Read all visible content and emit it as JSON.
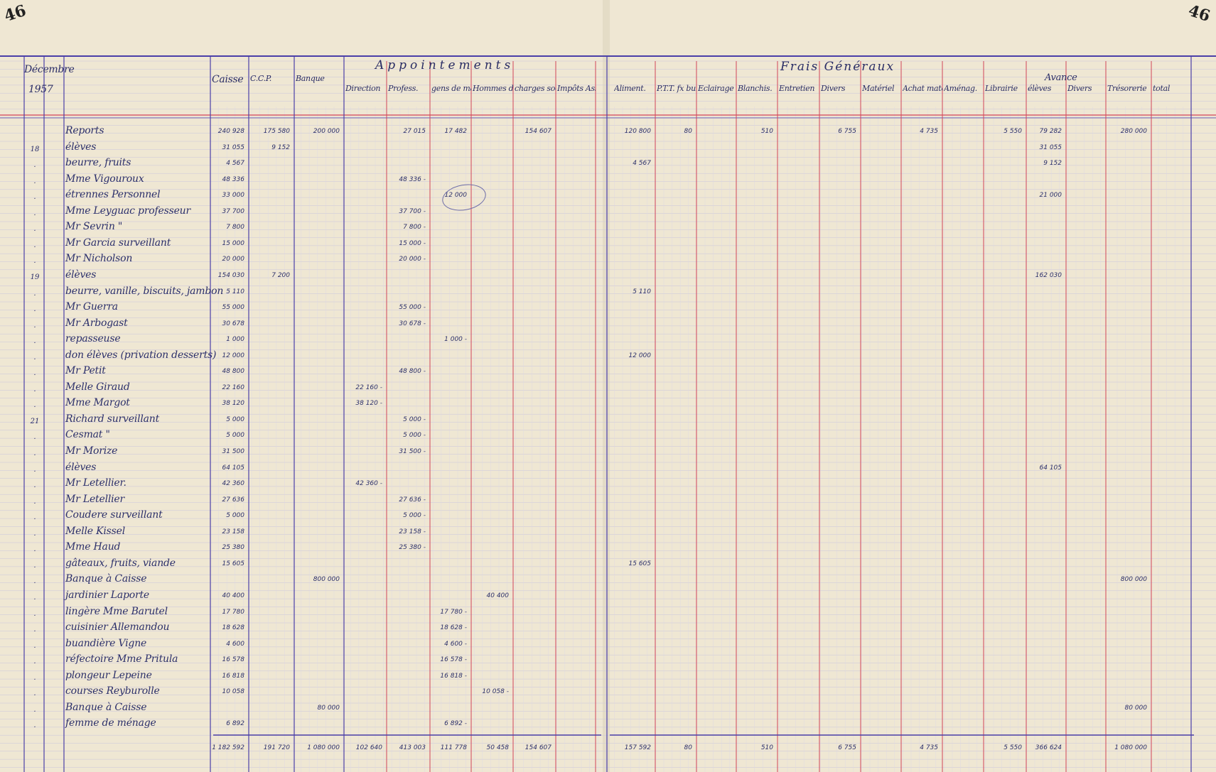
{
  "page_number_left": "46",
  "page_number_right": "46",
  "header": {
    "month": "Décembre",
    "year": "1957",
    "group_appointements": "Appointements",
    "group_frais": "Frais Généraux",
    "group_avance": "Avance"
  },
  "columns": [
    {
      "key": "caisse",
      "label": "Caisse"
    },
    {
      "key": "ccp",
      "label": "C.C.P."
    },
    {
      "key": "banque",
      "label": "Banque"
    },
    {
      "key": "direction",
      "label": "Direction"
    },
    {
      "key": "profess",
      "label": "Profess."
    },
    {
      "key": "gens",
      "label": "gens de maison"
    },
    {
      "key": "hommes",
      "label": "Hommes de peine"
    },
    {
      "key": "charges",
      "label": "charges sociales"
    },
    {
      "key": "impots",
      "label": "Impôts Assurance"
    },
    {
      "key": "aliment",
      "label": "Aliment."
    },
    {
      "key": "ptt",
      "label": "P.T.T. fx bureau"
    },
    {
      "key": "eclairage",
      "label": "Eclairage chauff."
    },
    {
      "key": "blanchis",
      "label": "Blanchis."
    },
    {
      "key": "entretien",
      "label": "Entretien"
    },
    {
      "key": "divers_fg",
      "label": "Divers"
    },
    {
      "key": "materiel",
      "label": "Matériel"
    },
    {
      "key": "achat_mat",
      "label": "Achat matériel"
    },
    {
      "key": "aménag",
      "label": "Aménag."
    },
    {
      "key": "librairie",
      "label": "Librairie"
    },
    {
      "key": "eleves",
      "label": "élèves"
    },
    {
      "key": "divers_av",
      "label": "Divers"
    },
    {
      "key": "tresorerie",
      "label": "Trésorerie"
    },
    {
      "key": "total",
      "label": "total"
    }
  ],
  "rows": [
    {
      "day": "",
      "label": "Reports",
      "caisse": "240 928",
      "ccp": "175 580",
      "banque": "200 000",
      "profess": "27 015",
      "gens": "17 482",
      "charges": "154 607",
      "aliment": "120 800",
      "ptt": "80",
      "blanchis": "510",
      "divers_fg": "6 755",
      "achat_mat": "4 735",
      "librairie": "5 550",
      "eleves": "79 282",
      "tresorerie": "280 000"
    },
    {
      "day": "18",
      "label": "élèves",
      "caisse": "31 055",
      "ccp": "9 152",
      "eleves": "31 055"
    },
    {
      "day": ".",
      "label": "beurre, fruits",
      "caisse": "4 567",
      "aliment": "4 567",
      "eleves": "9 152"
    },
    {
      "day": ".",
      "label": "Mme Vigouroux",
      "caisse": "48 336",
      "profess": "48 336 -"
    },
    {
      "day": ".",
      "label": "étrennes Personnel",
      "caisse": "33 000",
      "gens": "12 000",
      "eleves": "21 000"
    },
    {
      "day": ".",
      "label": "Mme Leyguac professeur",
      "caisse": "37 700",
      "profess": "37 700 -"
    },
    {
      "day": ".",
      "label": "Mr Sevrin \"",
      "caisse": "7 800",
      "profess": "7 800 -"
    },
    {
      "day": ".",
      "label": "Mr Garcia surveillant",
      "caisse": "15 000",
      "profess": "15 000 -"
    },
    {
      "day": ".",
      "label": "Mr Nicholson",
      "caisse": "20 000",
      "profess": "20 000 -"
    },
    {
      "day": "19",
      "label": "élèves",
      "caisse": "154 030",
      "ccp": "7 200",
      "eleves": "162 030"
    },
    {
      "day": ".",
      "label": "beurre, vanille, biscuits, jambon",
      "caisse": "5 110",
      "aliment": "5 110"
    },
    {
      "day": ".",
      "label": "Mr Guerra",
      "caisse": "55 000",
      "profess": "55 000 -"
    },
    {
      "day": ".",
      "label": "Mr Arbogast",
      "caisse": "30 678",
      "profess": "30 678 -"
    },
    {
      "day": ".",
      "label": "repasseuse",
      "caisse": "1 000",
      "gens": "1 000 -"
    },
    {
      "day": ".",
      "label": "don élèves (privation desserts)",
      "caisse": "12 000",
      "aliment": "12 000"
    },
    {
      "day": ".",
      "label": "Mr Petit",
      "caisse": "48 800",
      "profess": "48 800 -"
    },
    {
      "day": ".",
      "label": "Melle Giraud",
      "caisse": "22 160",
      "direction": "22 160 -"
    },
    {
      "day": ".",
      "label": "Mme Margot",
      "caisse": "38 120",
      "direction": "38 120 -"
    },
    {
      "day": "21",
      "label": "Richard surveillant",
      "caisse": "5 000",
      "profess": "5 000 -"
    },
    {
      "day": ".",
      "label": "Cesmat \"",
      "caisse": "5 000",
      "profess": "5 000 -"
    },
    {
      "day": ".",
      "label": "Mr Morize",
      "caisse": "31 500",
      "profess": "31 500 -"
    },
    {
      "day": ".",
      "label": "élèves",
      "caisse": "64 105",
      "eleves": "64 105"
    },
    {
      "day": ".",
      "label": "Mr Letellier.",
      "caisse": "42 360",
      "direction": "42 360 -"
    },
    {
      "day": ".",
      "label": "Mr Letellier",
      "caisse": "27 636",
      "profess": "27 636 -"
    },
    {
      "day": ".",
      "label": "Coudere surveillant",
      "caisse": "5 000",
      "profess": "5 000 -"
    },
    {
      "day": ".",
      "label": "Melle Kissel",
      "caisse": "23 158",
      "profess": "23 158 -"
    },
    {
      "day": ".",
      "label": "Mme Haud",
      "caisse": "25 380",
      "profess": "25 380 -"
    },
    {
      "day": ".",
      "label": "gâteaux, fruits, viande",
      "caisse": "15 605",
      "aliment": "15 605"
    },
    {
      "day": ".",
      "label": "Banque à Caisse",
      "banque": "800 000",
      "tresorerie": "800 000"
    },
    {
      "day": ".",
      "label": "jardinier Laporte",
      "caisse": "40 400",
      "hommes": "40 400"
    },
    {
      "day": ".",
      "label": "lingère Mme Barutel",
      "caisse": "17 780",
      "gens": "17 780 -"
    },
    {
      "day": ".",
      "label": "cuisinier Allemandou",
      "caisse": "18 628",
      "gens": "18 628 -"
    },
    {
      "day": ".",
      "label": "buandière Vigne",
      "caisse": "4 600",
      "gens": "4 600 -"
    },
    {
      "day": ".",
      "label": "réfectoire Mme Pritula",
      "caisse": "16 578",
      "gens": "16 578 -"
    },
    {
      "day": ".",
      "label": "plongeur Lepeine",
      "caisse": "16 818",
      "gens": "16 818 -"
    },
    {
      "day": ".",
      "label": "courses Reyburolle",
      "caisse": "10 058",
      "hommes": "10 058 -"
    },
    {
      "day": ".",
      "label": "Banque à Caisse",
      "banque": "80 000",
      "tresorerie": "80 000"
    },
    {
      "day": ".",
      "label": "femme de ménage",
      "caisse": "6 892",
      "gens": "6 892 -"
    }
  ],
  "totals": {
    "caisse": "1 182 592",
    "ccp": "191 720",
    "banque": "1 080 000",
    "direction": "102 640",
    "profess": "413 003",
    "gens": "111 778",
    "hommes": "50 458",
    "charges": "154 607",
    "aliment": "157 592",
    "ptt": "80",
    "blanchis": "510",
    "divers_fg": "6 755",
    "achat_mat": "4 735",
    "librairie": "5 550",
    "eleves": "366 624",
    "tresorerie": "1 080 000"
  },
  "colors": {
    "paper": "#efe7d3",
    "grid": "#c8c4dc",
    "red_rule": "#d2445a",
    "blue_rule": "#4a3fa8",
    "ink": "#2b2f6b"
  }
}
